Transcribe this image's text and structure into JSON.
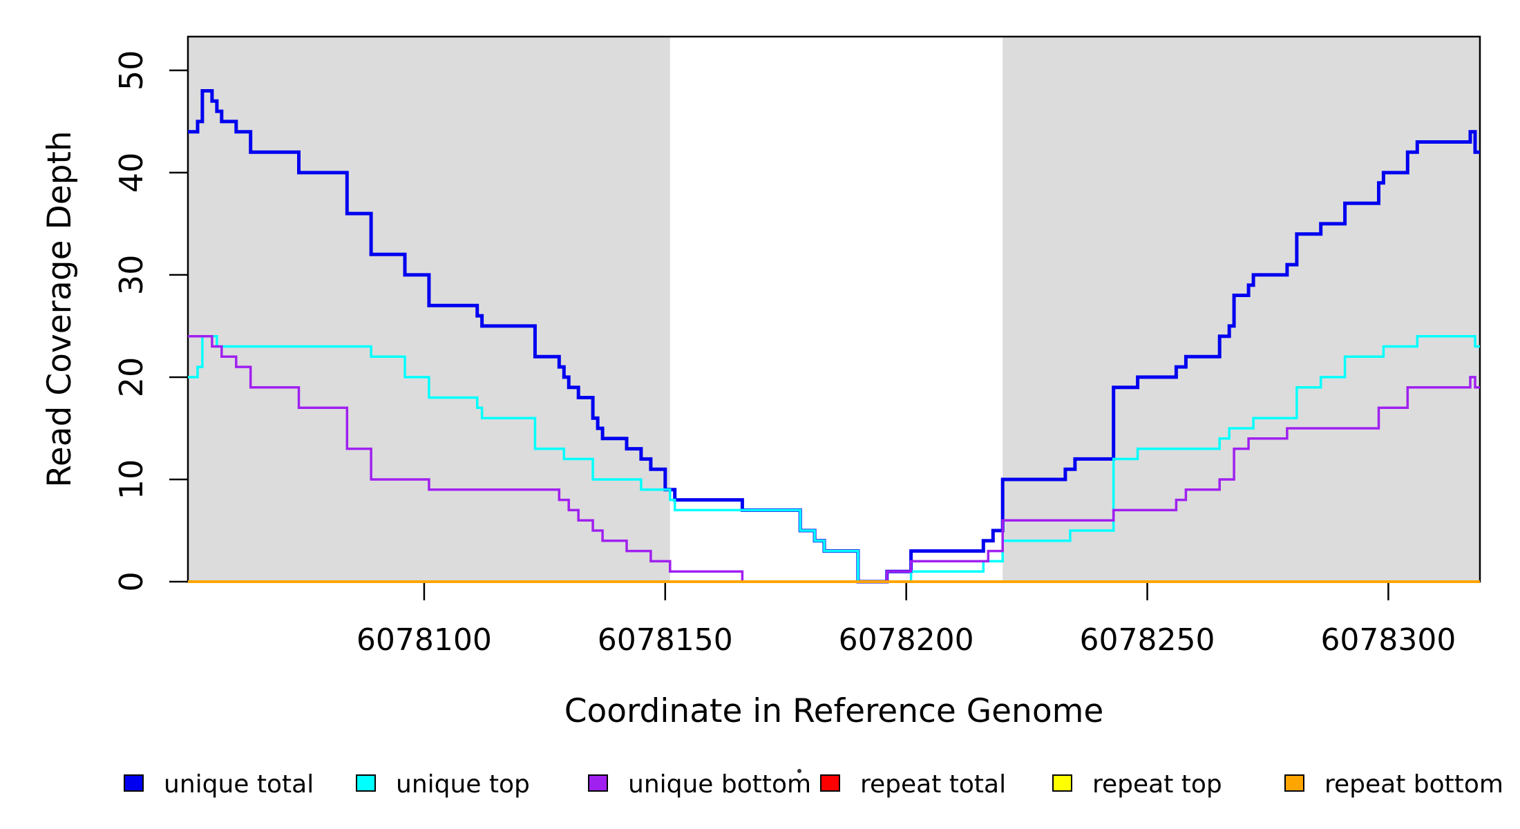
{
  "chart_data": {
    "type": "line",
    "subtype": "step",
    "title": "",
    "xlabel": "Coordinate in Reference Genome",
    "ylabel": "Read Coverage Depth",
    "xlim": [
      6078051,
      6078319
    ],
    "ylim": [
      0,
      53.3
    ],
    "x_ticks": [
      6078100,
      6078150,
      6078200,
      6078250,
      6078300
    ],
    "y_ticks": [
      0,
      10,
      20,
      30,
      40,
      50
    ],
    "grid": "off",
    "background_color": "#ffffff",
    "band_color": "#DCDCDC",
    "axis_color": "#000000",
    "shaded_bands": [
      {
        "x0": 6078051,
        "x1": 6078151
      },
      {
        "x0": 6078220,
        "x1": 6078319
      }
    ],
    "series": [
      {
        "name": "unique total",
        "color": "#0000F0",
        "line_width": 5,
        "points": [
          [
            6078051,
            44
          ],
          [
            6078053,
            45
          ],
          [
            6078054,
            48
          ],
          [
            6078056,
            47
          ],
          [
            6078057,
            46
          ],
          [
            6078058,
            45
          ],
          [
            6078061,
            44
          ],
          [
            6078064,
            42
          ],
          [
            6078074,
            40
          ],
          [
            6078084,
            36
          ],
          [
            6078089,
            32
          ],
          [
            6078096,
            30
          ],
          [
            6078101,
            27
          ],
          [
            6078111,
            26
          ],
          [
            6078112,
            25
          ],
          [
            6078123,
            22
          ],
          [
            6078128,
            21
          ],
          [
            6078129,
            20
          ],
          [
            6078130,
            19
          ],
          [
            6078132,
            18
          ],
          [
            6078135,
            16
          ],
          [
            6078136,
            15
          ],
          [
            6078137,
            14
          ],
          [
            6078142,
            13
          ],
          [
            6078145,
            12
          ],
          [
            6078147,
            11
          ],
          [
            6078150,
            9
          ],
          [
            6078152,
            8
          ],
          [
            6078166,
            7
          ],
          [
            6078178,
            5
          ],
          [
            6078181,
            4
          ],
          [
            6078183,
            3
          ],
          [
            6078190,
            0
          ],
          [
            6078196,
            1
          ],
          [
            6078201,
            3
          ],
          [
            6078216,
            4
          ],
          [
            6078218,
            5
          ],
          [
            6078220,
            10
          ],
          [
            6078233,
            11
          ],
          [
            6078235,
            12
          ],
          [
            6078243,
            19
          ],
          [
            6078248,
            20
          ],
          [
            6078256,
            21
          ],
          [
            6078258,
            22
          ],
          [
            6078265,
            24
          ],
          [
            6078267,
            25
          ],
          [
            6078268,
            28
          ],
          [
            6078271,
            29
          ],
          [
            6078272,
            30
          ],
          [
            6078279,
            31
          ],
          [
            6078281,
            34
          ],
          [
            6078286,
            35
          ],
          [
            6078291,
            37
          ],
          [
            6078298,
            39
          ],
          [
            6078299,
            40
          ],
          [
            6078304,
            42
          ],
          [
            6078306,
            43
          ],
          [
            6078317,
            44
          ],
          [
            6078318,
            42
          ]
        ]
      },
      {
        "name": "unique top",
        "color": "#00FFFF",
        "line_width": 3.5,
        "points": [
          [
            6078051,
            20
          ],
          [
            6078053,
            21
          ],
          [
            6078054,
            24
          ],
          [
            6078057,
            23
          ],
          [
            6078089,
            22
          ],
          [
            6078096,
            20
          ],
          [
            6078101,
            18
          ],
          [
            6078111,
            17
          ],
          [
            6078112,
            16
          ],
          [
            6078123,
            13
          ],
          [
            6078129,
            12
          ],
          [
            6078135,
            10
          ],
          [
            6078145,
            9
          ],
          [
            6078151,
            8
          ],
          [
            6078152,
            7
          ],
          [
            6078178,
            5
          ],
          [
            6078181,
            4
          ],
          [
            6078183,
            3
          ],
          [
            6078190,
            0
          ],
          [
            6078201,
            1
          ],
          [
            6078216,
            2
          ],
          [
            6078220,
            4
          ],
          [
            6078234,
            5
          ],
          [
            6078243,
            12
          ],
          [
            6078248,
            13
          ],
          [
            6078265,
            14
          ],
          [
            6078267,
            15
          ],
          [
            6078272,
            16
          ],
          [
            6078281,
            19
          ],
          [
            6078286,
            20
          ],
          [
            6078291,
            22
          ],
          [
            6078299,
            23
          ],
          [
            6078306,
            24
          ],
          [
            6078318,
            23
          ]
        ]
      },
      {
        "name": "unique bottom",
        "color": "#A020F0",
        "line_width": 3.5,
        "points": [
          [
            6078051,
            24
          ],
          [
            6078056,
            23
          ],
          [
            6078058,
            22
          ],
          [
            6078061,
            21
          ],
          [
            6078064,
            19
          ],
          [
            6078074,
            17
          ],
          [
            6078084,
            13
          ],
          [
            6078089,
            10
          ],
          [
            6078101,
            9
          ],
          [
            6078128,
            8
          ],
          [
            6078130,
            7
          ],
          [
            6078132,
            6
          ],
          [
            6078135,
            5
          ],
          [
            6078137,
            4
          ],
          [
            6078142,
            3
          ],
          [
            6078147,
            2
          ],
          [
            6078151,
            1
          ],
          [
            6078166,
            0
          ],
          [
            6078196,
            1
          ],
          [
            6078201,
            2
          ],
          [
            6078217,
            3
          ],
          [
            6078220,
            6
          ],
          [
            6078243,
            7
          ],
          [
            6078256,
            8
          ],
          [
            6078258,
            9
          ],
          [
            6078265,
            10
          ],
          [
            6078268,
            13
          ],
          [
            6078271,
            14
          ],
          [
            6078279,
            15
          ],
          [
            6078298,
            17
          ],
          [
            6078304,
            19
          ],
          [
            6078317,
            20
          ],
          [
            6078318,
            19
          ]
        ]
      },
      {
        "name": "repeat total",
        "color": "#FF0000",
        "line_width": 3.5,
        "points": [
          [
            6078051,
            0
          ]
        ]
      },
      {
        "name": "repeat top",
        "color": "#FFFF00",
        "line_width": 3.5,
        "points": [
          [
            6078051,
            0
          ]
        ]
      },
      {
        "name": "repeat bottom",
        "color": "#FFA500",
        "line_width": 4,
        "points": [
          [
            6078051,
            0
          ]
        ]
      }
    ],
    "legend": {
      "position": "bottom",
      "items": [
        {
          "label": "unique total",
          "color": "#0000F0"
        },
        {
          "label": "unique top",
          "color": "#00FFFF"
        },
        {
          "label": "unique bottom",
          "color": "#A020F0"
        },
        {
          "label": "repeat total",
          "color": "#FF0000"
        },
        {
          "label": "repeat top",
          "color": "#FFFF00"
        },
        {
          "label": "repeat bottom",
          "color": "#FFA500"
        }
      ],
      "stray_mark": "."
    }
  }
}
